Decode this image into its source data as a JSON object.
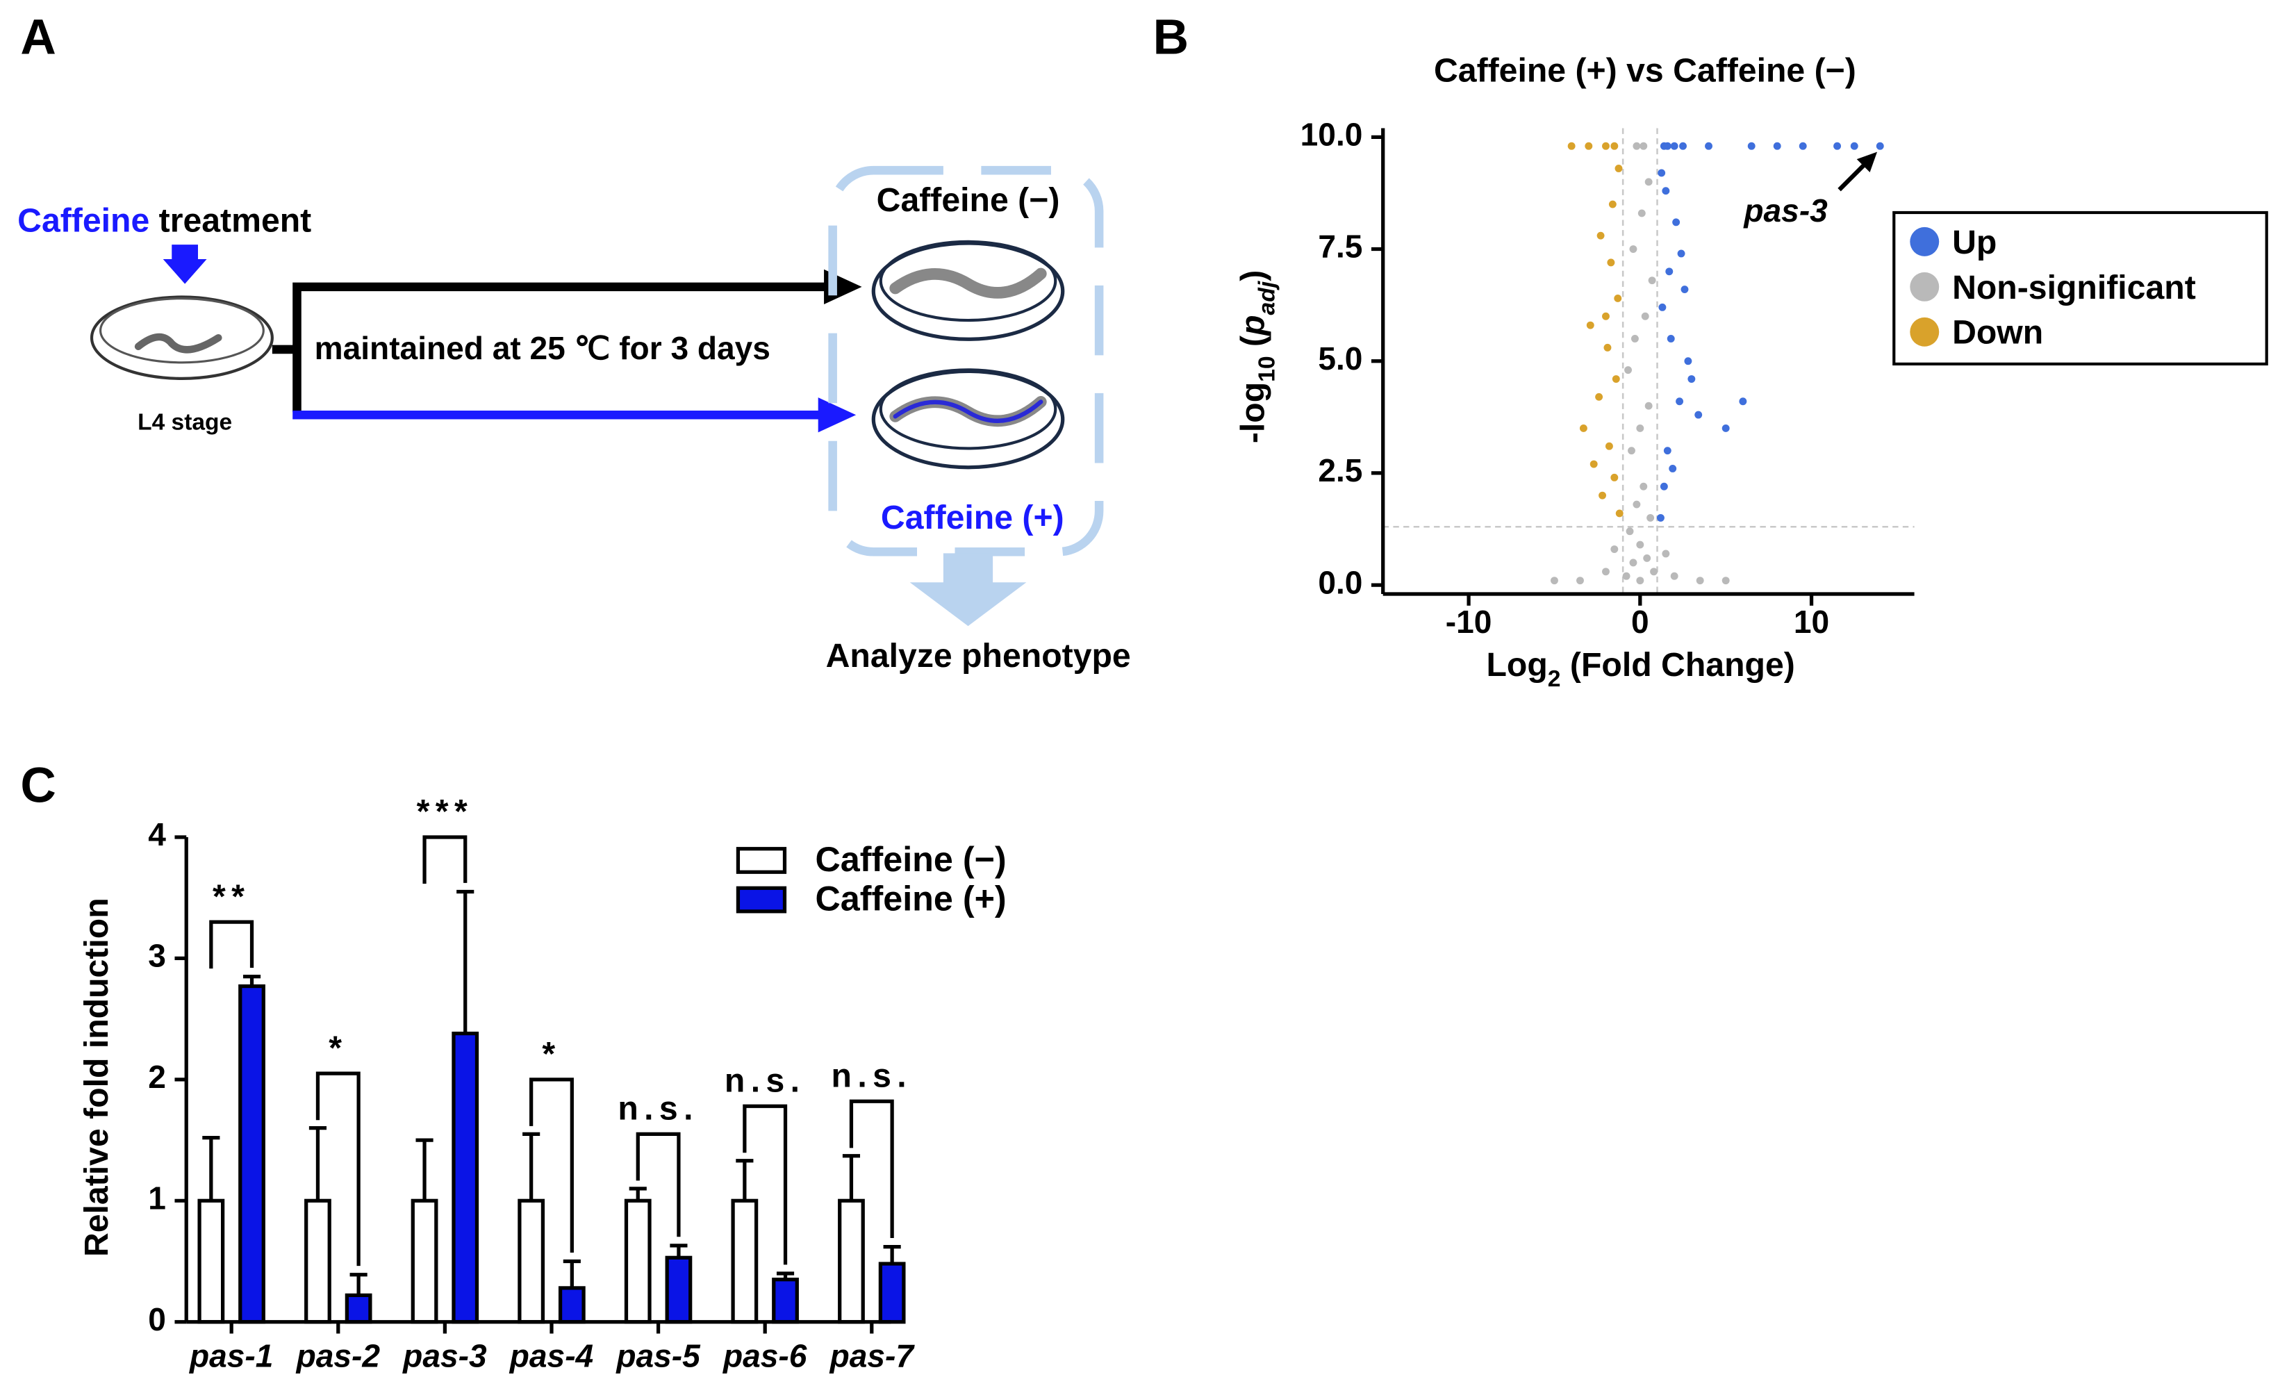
{
  "panel_labels": [
    "A",
    "B",
    "C"
  ],
  "diagram": {
    "treatment": {
      "highlight": "Caffeine",
      "rest": " treatment"
    },
    "stage": "L4 stage",
    "condition": "maintained at 25 ℃ for 3 days",
    "control": "Caffeine (−)",
    "treated": "Caffeine (+)",
    "outcome": "Analyze phenotype"
  },
  "chart_data": [
    {
      "type": "scatter",
      "title": "Caffeine (+) vs Caffeine (−)",
      "xlabel": [
        {
          "text": "Log"
        },
        {
          "text": "2",
          "sub": true
        },
        {
          "text": " (Fold Change)"
        }
      ],
      "ylabel": [
        {
          "text": "-log"
        },
        {
          "text": "10",
          "sub": true
        },
        {
          "text": " ("
        },
        {
          "text": "p",
          "italic": true
        },
        {
          "text": "adj",
          "sub": true,
          "italic": true
        },
        {
          "text": ")"
        }
      ],
      "xlim": [
        -15,
        16
      ],
      "ylim": [
        -0.2,
        10.2
      ],
      "xticks": [
        -10,
        0,
        10
      ],
      "yticks": [
        {
          "value": 0,
          "label": "0.0"
        },
        2.5,
        {
          "value": 5,
          "label": "5.0"
        },
        7.5,
        {
          "value": 10,
          "label": "10.0"
        }
      ],
      "thresholds": {
        "x": [
          -1,
          1
        ],
        "y": 1.3
      },
      "legend": "right",
      "series": [
        {
          "name": "Up",
          "color": "#3f6fdc",
          "x": [
            1.2,
            1.4,
            1.6,
            1.9,
            2.3,
            2.8,
            3.4,
            1.3,
            1.7,
            2.1,
            2.6,
            1.5,
            1.8,
            2.4,
            3.0,
            1.25,
            1.6,
            2.0,
            1.4,
            5.0,
            6.0,
            2.5,
            4.0,
            6.5,
            8.0,
            9.5,
            11.5,
            12.5,
            14.0
          ],
          "values": [
            1.5,
            2.2,
            3.0,
            2.6,
            4.1,
            5.0,
            3.8,
            6.2,
            7.0,
            8.1,
            6.6,
            8.8,
            5.5,
            7.4,
            4.6,
            9.2,
            9.8,
            9.8,
            9.8,
            3.5,
            4.1,
            9.8,
            9.8,
            9.8,
            9.8,
            9.8,
            9.8,
            9.8,
            9.8
          ]
        },
        {
          "name": "Non-significant",
          "color": "#b9b9b9",
          "x": [
            -0.8,
            -0.4,
            0,
            0.4,
            0.8,
            -0.6,
            -0.2,
            0.2,
            0.6,
            -0.5,
            0,
            0.5,
            -0.7,
            -0.3,
            0.3,
            0.7,
            -0.4,
            0.1,
            0.5,
            -0.2,
            0.2,
            -5,
            -3.5,
            -2,
            2,
            3.5,
            5,
            -1.5,
            1.5,
            0
          ],
          "values": [
            0.2,
            0.5,
            0.1,
            0.6,
            0.3,
            1.2,
            1.8,
            2.2,
            1.5,
            3.0,
            3.5,
            4.0,
            4.8,
            5.5,
            6.0,
            6.8,
            7.5,
            8.3,
            9.0,
            9.8,
            9.8,
            0.1,
            0.1,
            0.3,
            0.2,
            0.1,
            0.1,
            0.8,
            0.7,
            0.9
          ]
        },
        {
          "name": "Down",
          "color": "#d9a22b",
          "x": [
            -1.2,
            -1.5,
            -1.8,
            -2.2,
            -2.7,
            -3.3,
            -1.4,
            -1.9,
            -2.4,
            -1.3,
            -1.7,
            -2.0,
            -2.9,
            -1.6,
            -2.3,
            -1.25,
            -1.5,
            -2.0,
            -3.0,
            -4.0
          ],
          "values": [
            1.6,
            2.4,
            3.1,
            2.0,
            2.7,
            3.5,
            4.6,
            5.3,
            4.2,
            6.4,
            7.2,
            6.0,
            5.8,
            8.5,
            7.8,
            9.3,
            9.8,
            9.8,
            9.8,
            9.8
          ]
        }
      ],
      "annotations": [
        {
          "text": "pas-3",
          "series": 0,
          "point": 28
        }
      ]
    },
    {
      "type": "bar",
      "ylabel": "Relative fold induction",
      "categories": [
        "pas-1",
        "pas-2",
        "pas-3",
        "pas-4",
        "pas-5",
        "pas-6",
        "pas-7"
      ],
      "ylim": [
        0,
        4
      ],
      "yticks": [
        0,
        1,
        2,
        3,
        4
      ],
      "legend": "top-right",
      "series": [
        {
          "name": "Caffeine (−)",
          "color": "#ffffff",
          "values": [
            1,
            1,
            1,
            1,
            1,
            1,
            1
          ],
          "errors": [
            0.52,
            0.6,
            0.5,
            0.55,
            0.1,
            0.33,
            0.37
          ]
        },
        {
          "name": "Caffeine (+)",
          "color": "#0a14e6",
          "values": [
            2.77,
            0.22,
            2.38,
            0.28,
            0.53,
            0.35,
            0.48
          ],
          "errors": [
            0.08,
            0.17,
            1.17,
            0.22,
            0.1,
            0.05,
            0.14
          ]
        }
      ],
      "significance": [
        "**",
        "*",
        "***",
        "*",
        "n.s.",
        "n.s.",
        "n.s."
      ]
    }
  ]
}
